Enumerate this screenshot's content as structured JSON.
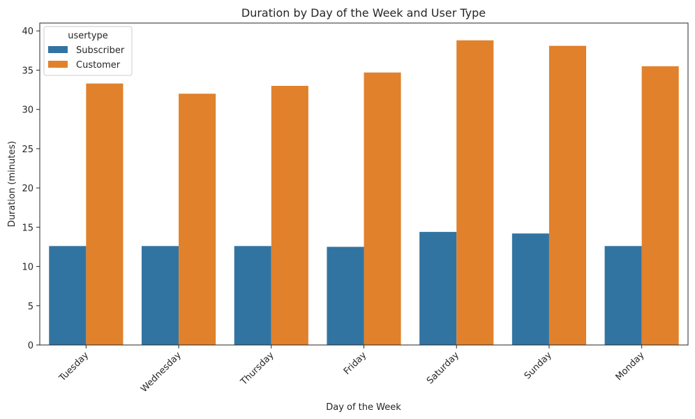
{
  "chart_data": {
    "type": "bar",
    "title": "Duration by Day of the Week and User Type",
    "xlabel": "Day of the Week",
    "ylabel": "Duration (minutes)",
    "categories": [
      "Tuesday",
      "Wednesday",
      "Thursday",
      "Friday",
      "Saturday",
      "Sunday",
      "Monday"
    ],
    "ylim": [
      0,
      41
    ],
    "yticks": [
      0,
      5,
      10,
      15,
      20,
      25,
      30,
      35,
      40
    ],
    "series": [
      {
        "name": "Subscriber",
        "color": "#3274a1",
        "values": [
          12.6,
          12.6,
          12.6,
          12.5,
          14.4,
          14.2,
          12.6
        ]
      },
      {
        "name": "Customer",
        "color": "#e1812c",
        "values": [
          33.3,
          32.0,
          33.0,
          34.7,
          38.8,
          38.1,
          35.5
        ]
      }
    ],
    "legend": {
      "title": "usertype",
      "position": "top-left"
    },
    "grid": false
  }
}
